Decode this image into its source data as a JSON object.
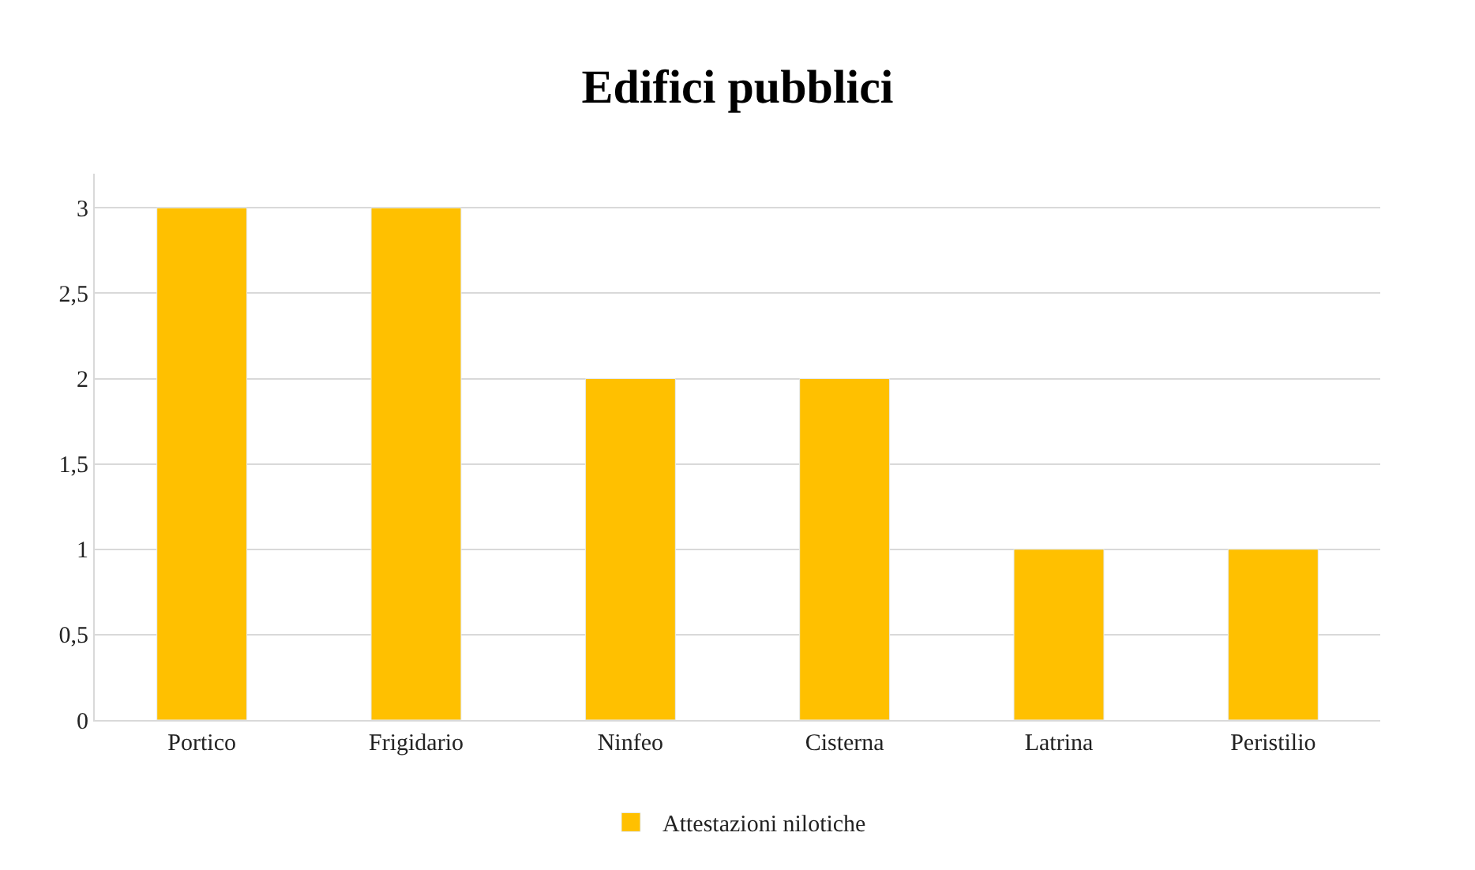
{
  "chart_data": {
    "type": "bar",
    "title": "Edifici pubblici",
    "categories": [
      "Portico",
      "Frigidario",
      "Ninfeo",
      "Cisterna",
      "Latrina",
      "Peristilio"
    ],
    "series": [
      {
        "name": "Attestazioni nilotiche",
        "color": "#ffc000",
        "values": [
          3,
          3,
          2,
          2,
          1,
          1
        ]
      }
    ],
    "ylim": [
      0,
      3.2
    ],
    "yticks": [
      0,
      {
        "value": 0.5,
        "label": "0,5"
      },
      1,
      {
        "value": 1.5,
        "label": "1,5"
      },
      2,
      {
        "value": 2.5,
        "label": "2,5"
      },
      3
    ],
    "grid": "y",
    "legend": "bottom"
  }
}
